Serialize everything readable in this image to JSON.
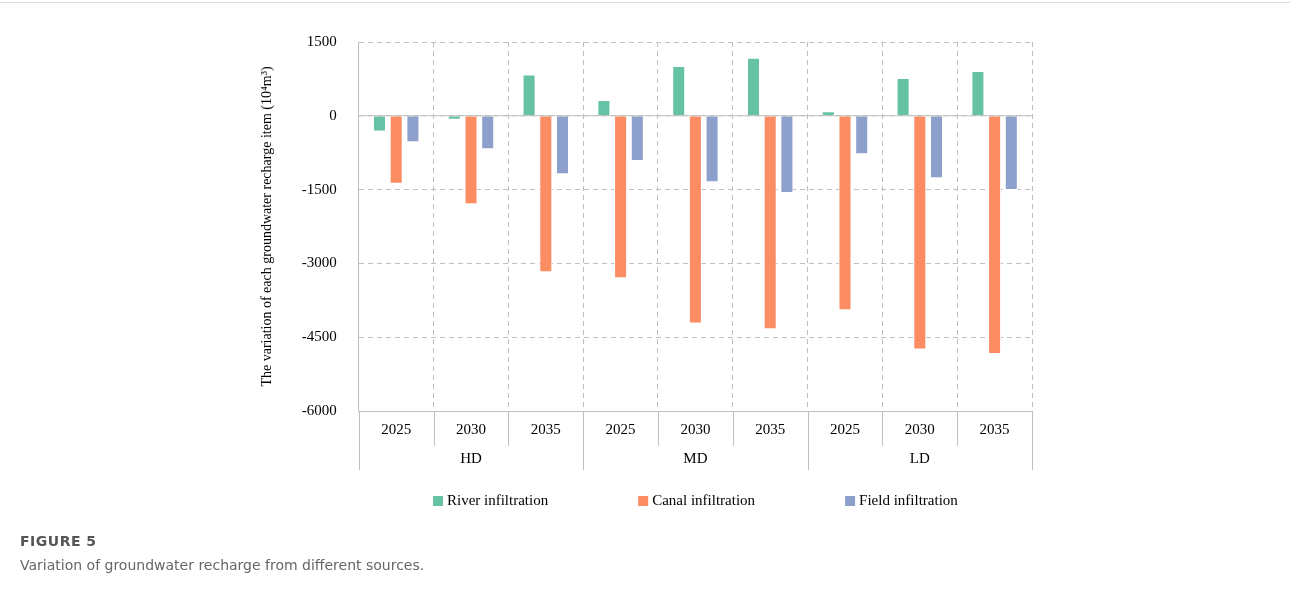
{
  "chart_data": {
    "type": "bar",
    "title": "FIGURE 5",
    "subtitle": "Variation of groundwater recharge from different sources.",
    "ylabel": "The variation of each groundwater recharge item (10⁴m³)",
    "categories": [
      "2025",
      "2030",
      "2035",
      "2025",
      "2030",
      "2035",
      "2025",
      "2030",
      "2035"
    ],
    "annotations": [
      "HD",
      "MD",
      "LD"
    ],
    "series": [
      {
        "name": "River infiltration",
        "color": "#66c2a5",
        "values": [
          -320,
          -80,
          840,
          320,
          1010,
          1180,
          90,
          770,
          910
        ]
      },
      {
        "name": "Canal infiltration",
        "color": "#fc8d62",
        "values": [
          -1380,
          -1800,
          -3180,
          -3300,
          -4220,
          -4340,
          -3950,
          -4750,
          -4840
        ]
      },
      {
        "name": "Field infiltration",
        "color": "#8da0cb",
        "values": [
          -540,
          -680,
          -1190,
          -920,
          -1350,
          -1570,
          -780,
          -1270,
          -1510
        ]
      }
    ],
    "ylim": [
      -6000,
      1500
    ],
    "yticks": [
      -6000,
      -4500,
      -3000,
      -1500,
      0,
      1500
    ],
    "grid": true,
    "legend": "bottom"
  }
}
